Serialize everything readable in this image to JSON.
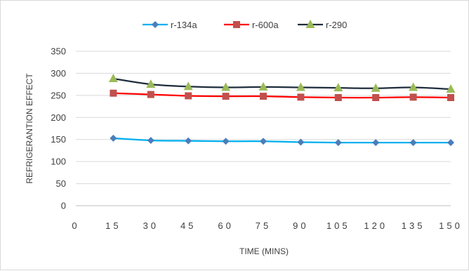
{
  "chart_data": {
    "type": "line",
    "title": "",
    "xlabel": "TIME (MINS)",
    "ylabel": "REFRIGERANTION EFFECT",
    "x_ticks": [
      "0",
      "15",
      "30",
      "45",
      "60",
      "75",
      "90",
      "105",
      "120",
      "135",
      "150"
    ],
    "y_ticks": [
      "0",
      "50",
      "100",
      "150",
      "200",
      "250",
      "300",
      "350"
    ],
    "xlim": [
      0,
      150
    ],
    "ylim": [
      0,
      350
    ],
    "grid": "horizontal",
    "legend_position": "top",
    "x": [
      15,
      30,
      45,
      60,
      75,
      90,
      105,
      120,
      135,
      150
    ],
    "series": [
      {
        "name": "r-134a",
        "color": "#00b0f0",
        "marker_color": "#4a7ebb",
        "marker": "diamond",
        "values": [
          153,
          148,
          147,
          146,
          146,
          144,
          143,
          143,
          143,
          143
        ]
      },
      {
        "name": "r-600a",
        "color": "#ff0000",
        "marker_color": "#c0504d",
        "marker": "square",
        "values": [
          255,
          252,
          249,
          248,
          248,
          246,
          245,
          245,
          246,
          245
        ]
      },
      {
        "name": "r-290",
        "color": "#1f2d3d",
        "marker_color": "#9bbb59",
        "marker": "triangle",
        "values": [
          288,
          275,
          270,
          268,
          269,
          268,
          267,
          266,
          268,
          264
        ]
      }
    ]
  }
}
